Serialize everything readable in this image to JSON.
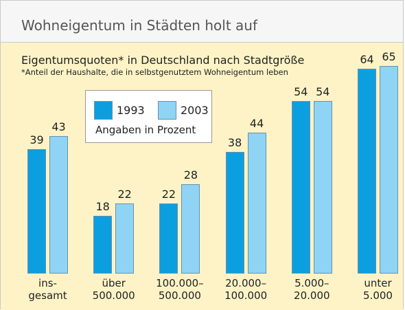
{
  "chart_data": {
    "type": "bar",
    "title": "Wohneigentum in Städten holt auf",
    "subtitle": "Eigentumsquoten* in Deutschland nach Stadtgröße",
    "note": "*Anteil der Haushalte, die in selbstgenutztem Wohneigentum leben",
    "legend_note": "Angaben in Prozent",
    "categories": [
      "ins-\ngesamt",
      "über\n500.000",
      "100.000–\n500.000",
      "20.000–\n100.000",
      "5.000–\n20.000",
      "unter\n5.000"
    ],
    "series": [
      {
        "name": "1993",
        "color": "#0b9fe0",
        "values": [
          39,
          18,
          22,
          38,
          54,
          64
        ]
      },
      {
        "name": "2003",
        "color": "#8fd4f4",
        "values": [
          43,
          22,
          28,
          44,
          54,
          65
        ]
      }
    ]
  }
}
